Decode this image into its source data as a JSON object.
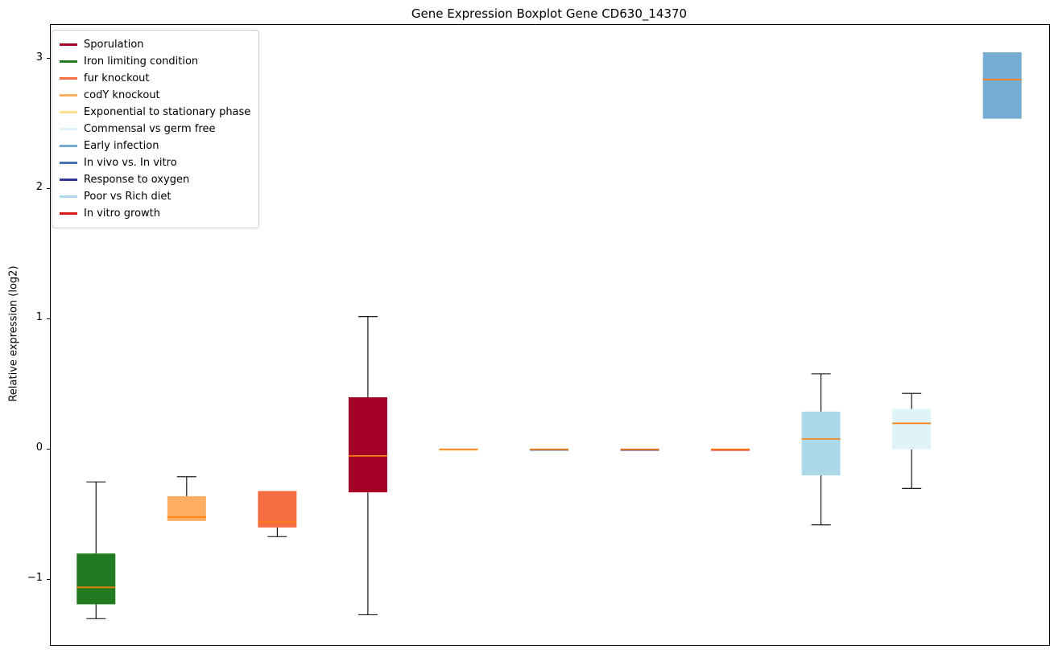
{
  "figure": {
    "title": "Gene Expression Boxplot Gene CD630_14370",
    "ylabel": "Relative expression (log2)"
  },
  "y_axis": {
    "ticks": [
      {
        "value": -1,
        "label": "−1"
      },
      {
        "value": 0,
        "label": "0"
      },
      {
        "value": 1,
        "label": "1"
      },
      {
        "value": 2,
        "label": "2"
      },
      {
        "value": 3,
        "label": "3"
      }
    ]
  },
  "legend": {
    "position": "upper-left",
    "items": [
      {
        "label": "Sporulation",
        "color": "#a50026"
      },
      {
        "label": "Iron limiting condition",
        "color": "#217c21"
      },
      {
        "label": "fur knockout",
        "color": "#f46d43"
      },
      {
        "label": "codY knockout",
        "color": "#fdae61"
      },
      {
        "label": "Exponential to stationary phase",
        "color": "#fee090"
      },
      {
        "label": "Commensal vs germ free",
        "color": "#e0f3f8"
      },
      {
        "label": "Early infection",
        "color": "#74add1"
      },
      {
        "label": "In vivo vs. In vitro",
        "color": "#4575b4"
      },
      {
        "label": "Response to oxygen",
        "color": "#313695"
      },
      {
        "label": "Poor vs Rich diet",
        "color": "#abd9e9"
      },
      {
        "label": "In vitro growth",
        "color": "#d7191c"
      }
    ]
  },
  "chart_data": {
    "type": "boxplot",
    "title": "Gene Expression Boxplot Gene CD630_14370",
    "xlabel": "",
    "ylabel": "Relative expression (log2)",
    "ylim": [
      -1.49,
      3.26
    ],
    "grid": false,
    "median_color": "#ff7f0e",
    "whisker_color": "#000000",
    "boxes": [
      {
        "label": "Iron limiting condition",
        "color": "#217c21",
        "whislo": -1.3,
        "q1": -1.19,
        "med": -1.06,
        "q3": -0.8,
        "whishi": -0.25
      },
      {
        "label": "codY knockout",
        "color": "#fdae61",
        "whislo": -0.57,
        "q1": -0.55,
        "med": -0.52,
        "q3": -0.36,
        "whishi": -0.21
      },
      {
        "label": "fur knockout",
        "color": "#f46d43",
        "whislo": -0.67,
        "q1": -0.6,
        "med": -0.56,
        "q3": -0.32,
        "whishi": -0.32
      },
      {
        "label": "Sporulation",
        "color": "#a50026",
        "whislo": -1.27,
        "q1": -0.33,
        "med": -0.05,
        "q3": 0.4,
        "whishi": 1.02
      },
      {
        "label": "Exponential to stationary phase",
        "color": "#fee090",
        "whislo": -0.01,
        "q1": -0.005,
        "med": 0.0,
        "q3": 0.005,
        "whishi": 0.01
      },
      {
        "label": "In vivo vs. In vitro",
        "color": "#4575b4",
        "whislo": -0.01,
        "q1": -0.005,
        "med": 0.0,
        "q3": 0.005,
        "whishi": 0.01
      },
      {
        "label": "Response to oxygen",
        "color": "#313695",
        "whislo": -0.01,
        "q1": -0.005,
        "med": 0.0,
        "q3": 0.005,
        "whishi": 0.01
      },
      {
        "label": "In vitro growth",
        "color": "#d7191c",
        "whislo": -0.01,
        "q1": -0.005,
        "med": 0.0,
        "q3": 0.005,
        "whishi": 0.01
      },
      {
        "label": "Poor vs Rich diet",
        "color": "#abd9e9",
        "whislo": -0.58,
        "q1": -0.2,
        "med": 0.08,
        "q3": 0.29,
        "whishi": 0.58
      },
      {
        "label": "Commensal vs germ free",
        "color": "#e0f3f8",
        "whislo": -0.3,
        "q1": 0.0,
        "med": 0.2,
        "q3": 0.31,
        "whishi": 0.43
      },
      {
        "label": "Early infection",
        "color": "#74add1",
        "whislo": 2.54,
        "q1": 2.54,
        "med": 2.84,
        "q3": 3.05,
        "whishi": 3.05
      }
    ]
  }
}
